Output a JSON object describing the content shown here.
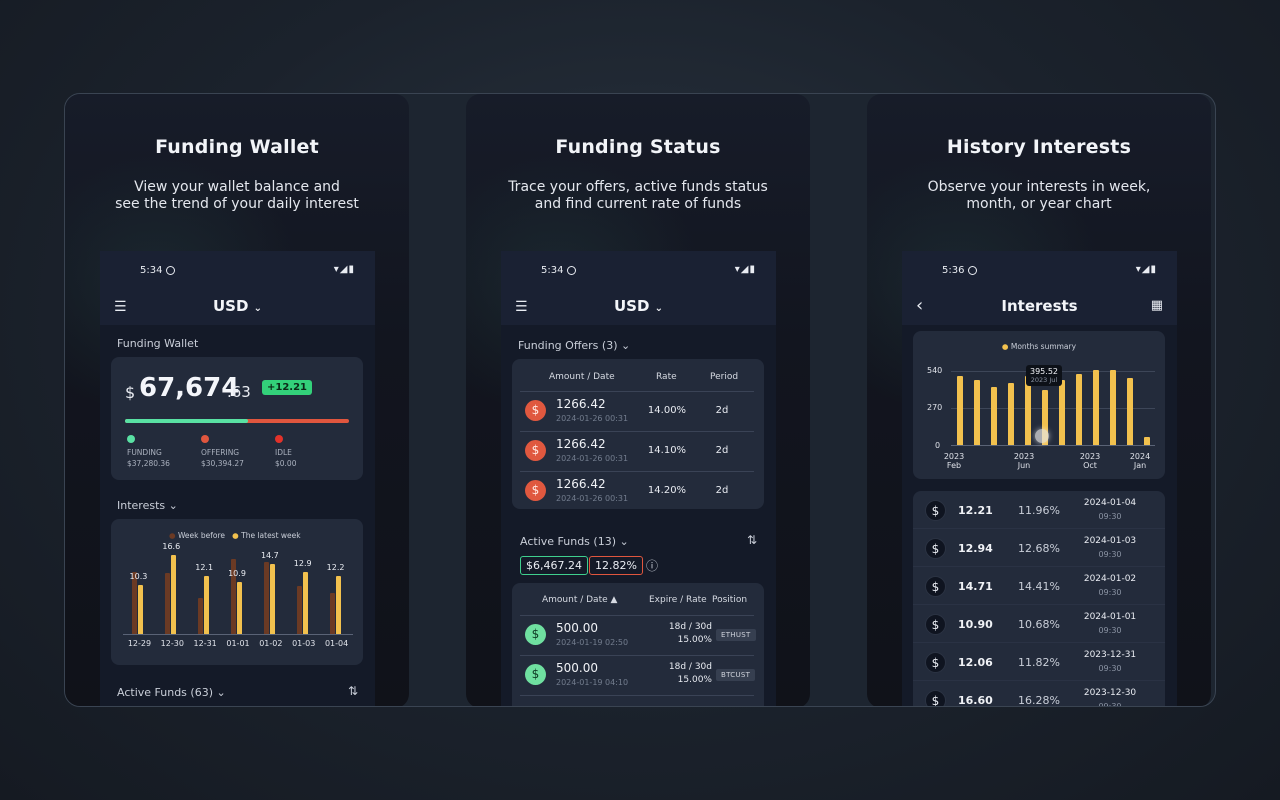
{
  "cards": [
    {
      "title": "Funding Wallet",
      "subtitle_line1": "View your wallet balance and",
      "subtitle_line2": "see the trend of your daily interest",
      "status_time": "5:34",
      "currency": "USD",
      "wallet_label": "Funding Wallet",
      "balance_symbol": "$",
      "balance_int": "67,674",
      "balance_dec": ".63",
      "change_badge": "+12.21",
      "breakdown": [
        {
          "label": "FUNDING",
          "value": "$37,280.36",
          "color": "#59e1a3"
        },
        {
          "label": "OFFERING",
          "value": "$30,394.27",
          "color": "#e0563e"
        },
        {
          "label": "IDLE",
          "value": "$0.00",
          "color": "#e2322a"
        }
      ],
      "funding_fraction": 0.55,
      "interests_label": "Interests",
      "active_funds_label": "Active Funds (63)"
    },
    {
      "title": "Funding Status",
      "subtitle_line1": "Trace your offers, active funds status",
      "subtitle_line2": "and find current rate of funds",
      "status_time": "5:34",
      "currency": "USD",
      "offers_label": "Funding Offers (3)",
      "offers_headers": {
        "amount": "Amount / Date",
        "rate": "Rate",
        "period": "Period"
      },
      "offers": [
        {
          "amount": "1266.42",
          "date": "2024-01-26 00:31",
          "rate": "14.00%",
          "period": "2d"
        },
        {
          "amount": "1266.42",
          "date": "2024-01-26 00:31",
          "rate": "14.10%",
          "period": "2d"
        },
        {
          "amount": "1266.42",
          "date": "2024-01-26 00:31",
          "rate": "14.20%",
          "period": "2d"
        }
      ],
      "active_label": "Active Funds (13)",
      "active_total": "$6,467.24",
      "active_rate": "12.82%",
      "active_headers": {
        "amount": "Amount / Date ▲",
        "expire": "Expire / Rate",
        "position": "Position"
      },
      "active": [
        {
          "amount": "500.00",
          "date": "2024-01-19 02:50",
          "expire": "18d / 30d",
          "rate": "15.00%",
          "position": "ETHUST"
        },
        {
          "amount": "500.00",
          "date": "2024-01-19 04:10",
          "expire": "18d / 30d",
          "rate": "15.00%",
          "position": "BTCUST"
        }
      ]
    },
    {
      "title": "History Interests",
      "subtitle_line1": "Observe your interests in week,",
      "subtitle_line2": "month, or year chart",
      "status_time": "5:36",
      "page_title": "Interests",
      "legend": "Months summary",
      "tooltip_value": "395.52",
      "tooltip_date": "2023 Jul",
      "y_ticks": [
        "540",
        "270",
        "0"
      ],
      "x_ticks": [
        "2023 Feb",
        "2023 Jun",
        "2023 Oct",
        "2024 Jan"
      ],
      "list": [
        {
          "amount": "12.21",
          "rate": "11.96%",
          "date": "2024-01-04",
          "time": "09:30"
        },
        {
          "amount": "12.94",
          "rate": "12.68%",
          "date": "2024-01-03",
          "time": "09:30"
        },
        {
          "amount": "14.71",
          "rate": "14.41%",
          "date": "2024-01-02",
          "time": "09:30"
        },
        {
          "amount": "10.90",
          "rate": "10.68%",
          "date": "2024-01-01",
          "time": "09:30"
        },
        {
          "amount": "12.06",
          "rate": "11.82%",
          "date": "2023-12-31",
          "time": "09:30"
        },
        {
          "amount": "16.60",
          "rate": "16.28%",
          "date": "2023-12-30",
          "time": "09:30"
        }
      ]
    }
  ],
  "chart_data": [
    {
      "type": "bar",
      "legend": [
        "Week before",
        "The latest week"
      ],
      "categories": [
        "12-29",
        "12-30",
        "12-31",
        "01-01",
        "01-02",
        "01-03",
        "01-04"
      ],
      "series": [
        {
          "name": "Week before",
          "values": [
            13.0,
            12.8,
            7.5,
            15.6,
            15.0,
            10.0,
            8.5
          ]
        },
        {
          "name": "The latest week",
          "values": [
            10.3,
            16.6,
            12.1,
            10.9,
            14.7,
            12.9,
            12.2
          ]
        }
      ],
      "ylim": [
        0,
        18
      ]
    },
    {
      "type": "bar",
      "title": "",
      "legend": [
        "Months summary"
      ],
      "categories": [
        "2023 Feb",
        "2023 Mar",
        "2023 Apr",
        "2023 May",
        "2023 Jun",
        "2023 Jul",
        "2023 Aug",
        "2023 Sep",
        "2023 Oct",
        "2023 Nov",
        "2023 Dec",
        "2024 Jan"
      ],
      "values": [
        495,
        465,
        415,
        450,
        500,
        395.52,
        465,
        510,
        540,
        550,
        485,
        55
      ],
      "ylim": [
        0,
        540
      ],
      "yticks": [
        0,
        270,
        540
      ]
    }
  ]
}
